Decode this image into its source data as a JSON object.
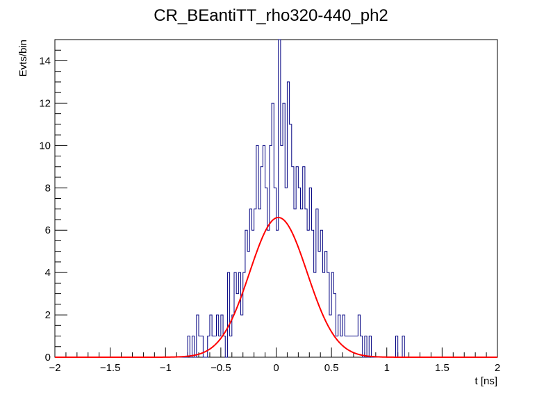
{
  "chart_data": {
    "type": "histogram",
    "title": "CR_BEantiTT_rho320-440_ph2",
    "xlabel": "t [ns]",
    "ylabel": "Evts/bin",
    "xlim": [
      -2,
      2
    ],
    "ylim": [
      0,
      15
    ],
    "x_ticks": [
      -2,
      -1.5,
      -1,
      -0.5,
      0,
      0.5,
      1,
      1.5,
      2
    ],
    "x_tick_labels": [
      "−2",
      "−1.5",
      "−1",
      "−0.5",
      "0",
      "0.5",
      "1",
      "1.5",
      "2"
    ],
    "y_ticks": [
      0,
      2,
      4,
      6,
      8,
      10,
      12,
      14
    ],
    "y_tick_labels": [
      "0",
      "2",
      "4",
      "6",
      "8",
      "10",
      "12",
      "14"
    ],
    "bin_width": 0.02,
    "histogram_color": "#000080",
    "fit_color": "#ff0000",
    "histogram": [
      {
        "x": -0.8,
        "y": 1
      },
      {
        "x": -0.78,
        "y": 0
      },
      {
        "x": -0.76,
        "y": 1
      },
      {
        "x": -0.74,
        "y": 0
      },
      {
        "x": -0.72,
        "y": 2
      },
      {
        "x": -0.7,
        "y": 1
      },
      {
        "x": -0.68,
        "y": 1
      },
      {
        "x": -0.66,
        "y": 0
      },
      {
        "x": -0.64,
        "y": 0
      },
      {
        "x": -0.62,
        "y": 1
      },
      {
        "x": -0.6,
        "y": 2
      },
      {
        "x": -0.58,
        "y": 1
      },
      {
        "x": -0.56,
        "y": 1
      },
      {
        "x": -0.54,
        "y": 2
      },
      {
        "x": -0.52,
        "y": 1
      },
      {
        "x": -0.5,
        "y": 2
      },
      {
        "x": -0.48,
        "y": 1
      },
      {
        "x": -0.46,
        "y": 0
      },
      {
        "x": -0.44,
        "y": 4
      },
      {
        "x": -0.42,
        "y": 1
      },
      {
        "x": -0.4,
        "y": 2
      },
      {
        "x": -0.38,
        "y": 4
      },
      {
        "x": -0.36,
        "y": 3
      },
      {
        "x": -0.34,
        "y": 4
      },
      {
        "x": -0.32,
        "y": 2
      },
      {
        "x": -0.3,
        "y": 4
      },
      {
        "x": -0.28,
        "y": 6
      },
      {
        "x": -0.26,
        "y": 5
      },
      {
        "x": -0.24,
        "y": 7
      },
      {
        "x": -0.22,
        "y": 6
      },
      {
        "x": -0.2,
        "y": 7
      },
      {
        "x": -0.18,
        "y": 10
      },
      {
        "x": -0.16,
        "y": 7
      },
      {
        "x": -0.14,
        "y": 9
      },
      {
        "x": -0.12,
        "y": 10
      },
      {
        "x": -0.1,
        "y": 8
      },
      {
        "x": -0.08,
        "y": 6
      },
      {
        "x": -0.06,
        "y": 10
      },
      {
        "x": -0.04,
        "y": 12
      },
      {
        "x": -0.02,
        "y": 8
      },
      {
        "x": 0.0,
        "y": 6
      },
      {
        "x": 0.02,
        "y": 15
      },
      {
        "x": 0.04,
        "y": 10
      },
      {
        "x": 0.06,
        "y": 12
      },
      {
        "x": 0.08,
        "y": 8
      },
      {
        "x": 0.1,
        "y": 13
      },
      {
        "x": 0.12,
        "y": 11
      },
      {
        "x": 0.14,
        "y": 9
      },
      {
        "x": 0.16,
        "y": 7
      },
      {
        "x": 0.18,
        "y": 9
      },
      {
        "x": 0.2,
        "y": 8
      },
      {
        "x": 0.22,
        "y": 7
      },
      {
        "x": 0.24,
        "y": 9
      },
      {
        "x": 0.26,
        "y": 7
      },
      {
        "x": 0.28,
        "y": 6
      },
      {
        "x": 0.3,
        "y": 8
      },
      {
        "x": 0.32,
        "y": 6
      },
      {
        "x": 0.34,
        "y": 4
      },
      {
        "x": 0.36,
        "y": 7
      },
      {
        "x": 0.38,
        "y": 5
      },
      {
        "x": 0.4,
        "y": 6
      },
      {
        "x": 0.42,
        "y": 4
      },
      {
        "x": 0.44,
        "y": 5
      },
      {
        "x": 0.46,
        "y": 4
      },
      {
        "x": 0.48,
        "y": 2
      },
      {
        "x": 0.5,
        "y": 4
      },
      {
        "x": 0.52,
        "y": 3
      },
      {
        "x": 0.54,
        "y": 1
      },
      {
        "x": 0.56,
        "y": 2
      },
      {
        "x": 0.58,
        "y": 1
      },
      {
        "x": 0.6,
        "y": 2
      },
      {
        "x": 0.62,
        "y": 1
      },
      {
        "x": 0.64,
        "y": 1
      },
      {
        "x": 0.66,
        "y": 1
      },
      {
        "x": 0.68,
        "y": 1
      },
      {
        "x": 0.7,
        "y": 1
      },
      {
        "x": 0.72,
        "y": 1
      },
      {
        "x": 0.74,
        "y": 2
      },
      {
        "x": 0.76,
        "y": 1
      },
      {
        "x": 0.78,
        "y": 0
      },
      {
        "x": 0.8,
        "y": 1
      },
      {
        "x": 0.82,
        "y": 0
      },
      {
        "x": 0.84,
        "y": 1
      },
      {
        "x": 1.08,
        "y": 1
      },
      {
        "x": 1.14,
        "y": 1
      }
    ],
    "fit": {
      "type": "gaussian",
      "amplitude": 6.6,
      "mean": 0.02,
      "sigma": 0.26
    }
  }
}
